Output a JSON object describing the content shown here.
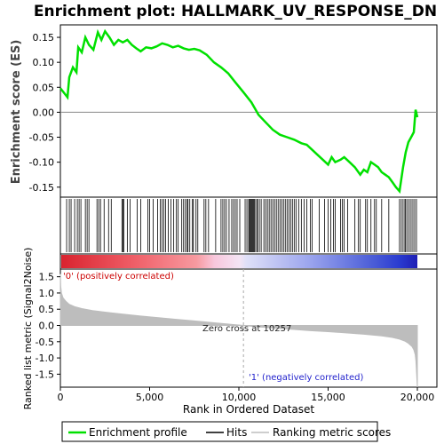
{
  "title": "Enrichment plot: HALLMARK_UV_RESPONSE_DN",
  "colors": {
    "es_line": "#00e000",
    "hits": "#000000",
    "metric_fill": "#bdbdbd",
    "zero_line": "#aaaaaa",
    "pos_label": "#cc0000",
    "neg_label": "#2222cc"
  },
  "chart_data": [
    {
      "type": "line",
      "name": "enrichment-profile",
      "ylabel": "Enrichment score (ES)",
      "xlim": [
        0,
        20000
      ],
      "ylim": [
        -0.17,
        0.175
      ],
      "yticks": [
        0.15,
        0.1,
        0.05,
        0.0,
        -0.05,
        -0.1,
        -0.15
      ],
      "ytick_labels": [
        "0.15",
        "0.10",
        "0.05",
        "0.00",
        "-0.05",
        "-0.10",
        "-0.15"
      ],
      "series": [
        {
          "x": [
            0,
            400,
            500,
            700,
            900,
            1000,
            1200,
            1400,
            1600,
            1850,
            2100,
            2300,
            2500,
            2750,
            3000,
            3250,
            3500,
            3750,
            4000,
            4250,
            4500,
            4800,
            5100,
            5400,
            5700,
            6000,
            6300,
            6600,
            6900,
            7200,
            7500,
            7800,
            8200,
            8600,
            9000,
            9400,
            9800,
            10257,
            10700,
            11100,
            11500,
            11900,
            12300,
            12700,
            13100,
            13500,
            13800,
            14100,
            14400,
            14700,
            15000,
            15200,
            15400,
            15700,
            15900,
            16200,
            16500,
            16800,
            17000,
            17200,
            17400,
            17600,
            17800,
            18000,
            18200,
            18400,
            18600,
            18800,
            19000,
            19200,
            19350,
            19500,
            19650,
            19800,
            19900,
            20000
          ],
          "y": [
            0.048,
            0.03,
            0.07,
            0.09,
            0.08,
            0.13,
            0.12,
            0.15,
            0.135,
            0.125,
            0.16,
            0.145,
            0.162,
            0.15,
            0.135,
            0.145,
            0.14,
            0.145,
            0.135,
            0.128,
            0.122,
            0.13,
            0.128,
            0.132,
            0.138,
            0.135,
            0.13,
            0.133,
            0.128,
            0.125,
            0.127,
            0.124,
            0.115,
            0.1,
            0.09,
            0.078,
            0.06,
            0.04,
            0.02,
            -0.005,
            -0.02,
            -0.035,
            -0.045,
            -0.05,
            -0.055,
            -0.062,
            -0.065,
            -0.075,
            -0.085,
            -0.095,
            -0.105,
            -0.09,
            -0.1,
            -0.095,
            -0.09,
            -0.1,
            -0.11,
            -0.125,
            -0.115,
            -0.12,
            -0.1,
            -0.105,
            -0.11,
            -0.12,
            -0.125,
            -0.13,
            -0.14,
            -0.15,
            -0.158,
            -0.11,
            -0.08,
            -0.06,
            -0.05,
            -0.04,
            0.005,
            -0.01
          ]
        }
      ]
    },
    {
      "type": "table",
      "name": "hits",
      "hit_positions": [
        350,
        500,
        600,
        800,
        950,
        1050,
        1150,
        1400,
        1500,
        1600,
        2050,
        2150,
        2250,
        2450,
        2700,
        2850,
        3450,
        3500,
        3550,
        3750,
        3900,
        4300,
        4500,
        4900,
        5000,
        5200,
        5450,
        5600,
        5700,
        5800,
        5900,
        6050,
        6200,
        6350,
        6500,
        6600,
        6800,
        6900,
        7000,
        7100,
        7150,
        7250,
        7400,
        7450,
        7600,
        7700,
        8050,
        8150,
        8300,
        8700,
        9000,
        9100,
        9200,
        9300,
        9450,
        9600,
        9700,
        9800,
        9900,
        10050,
        10350,
        10450,
        10550,
        10600,
        10650,
        10700,
        10750,
        10800,
        10850,
        10900,
        11000,
        11050,
        11150,
        11250,
        11400,
        11500,
        11600,
        11700,
        11800,
        11900,
        12000,
        12100,
        12200,
        12300,
        12400,
        12500,
        12600,
        12700,
        12800,
        12900,
        13000,
        13100,
        13200,
        13350,
        13500,
        13650,
        13800,
        14000,
        14100,
        14500,
        14800,
        15000,
        15150,
        15300,
        15400,
        15700,
        15800,
        15900,
        16100,
        16500,
        16700,
        16800,
        17100,
        17200,
        17400,
        17600,
        17700,
        18000,
        18400,
        19000,
        19100,
        19200,
        19300,
        19350,
        19450,
        19550,
        19650,
        19750,
        19850,
        19950
      ]
    },
    {
      "type": "area",
      "name": "ranking-metric",
      "ylabel": "Ranked list metric (Signal2Noise)",
      "xlabel": "Rank in Ordered Dataset",
      "xlim": [
        0,
        20000
      ],
      "ylim": [
        -1.9,
        1.6
      ],
      "yticks": [
        1.5,
        1.0,
        0.5,
        0.0,
        -0.5,
        -1.0,
        -1.5
      ],
      "ytick_labels": [
        "1.5",
        "1.0",
        "0.5",
        "0.0",
        "-0.5",
        "-1.0",
        "-1.5"
      ],
      "xticks": [
        0,
        5000,
        10000,
        15000,
        20000
      ],
      "xtick_labels": [
        "0",
        "5,000",
        "10,000",
        "15,000",
        "20,000"
      ],
      "x": [
        0,
        20,
        60,
        150,
        300,
        500,
        800,
        1200,
        1800,
        2500,
        3500,
        4500,
        5500,
        6500,
        7500,
        8500,
        9500,
        10257,
        11000,
        12000,
        13000,
        14000,
        15000,
        16000,
        17000,
        18000,
        18600,
        19000,
        19300,
        19500,
        19700,
        19800,
        19880,
        19920,
        19960,
        20000
      ],
      "values": [
        1.58,
        1.2,
        1.0,
        0.85,
        0.75,
        0.65,
        0.58,
        0.52,
        0.46,
        0.41,
        0.35,
        0.29,
        0.24,
        0.19,
        0.14,
        0.09,
        0.04,
        0.0,
        -0.04,
        -0.08,
        -0.12,
        -0.16,
        -0.19,
        -0.23,
        -0.27,
        -0.32,
        -0.37,
        -0.42,
        -0.48,
        -0.55,
        -0.65,
        -0.75,
        -0.9,
        -1.1,
        -1.5,
        -1.9
      ],
      "zero_cross_label": "Zero cross at 10257",
      "pos_label": "'0' (positively correlated)",
      "neg_label": "'1' (negatively correlated)"
    }
  ],
  "legend": {
    "items": [
      {
        "label": "Enrichment profile",
        "color": "#00e000"
      },
      {
        "label": "Hits",
        "color": "#000000"
      },
      {
        "label": "Ranking metric scores",
        "color": "#bdbdbd"
      }
    ]
  }
}
